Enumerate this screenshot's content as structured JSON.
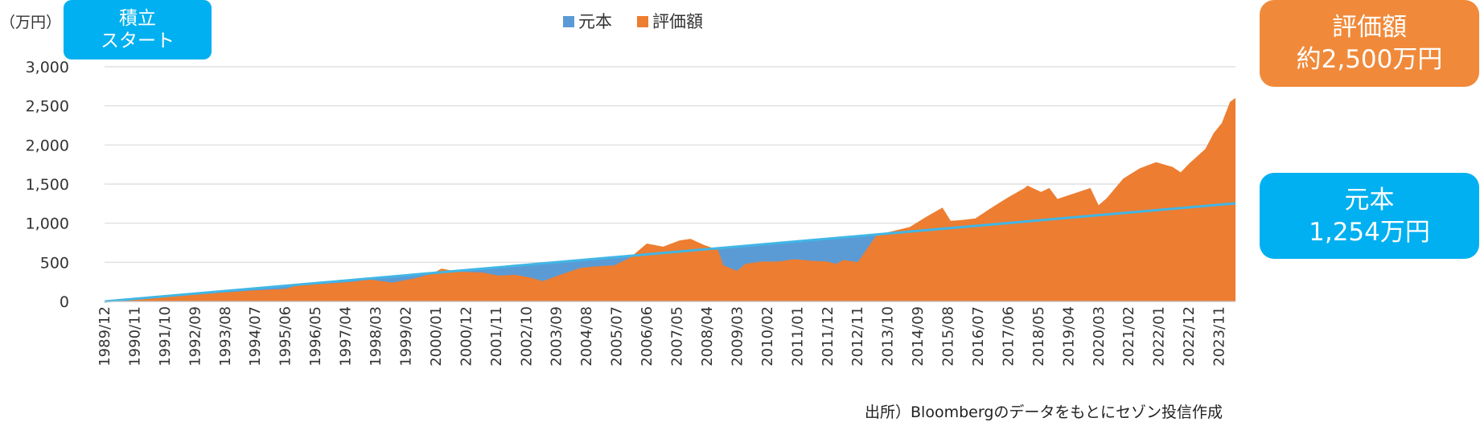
{
  "badges": {
    "start": [
      "積立",
      "スタート"
    ],
    "value": [
      "評価額",
      "約2,500万円"
    ],
    "principal": [
      "元本",
      "1,254万円"
    ]
  },
  "source_note": "出所）Bloombergのデータをもとにセゾン投信作成",
  "colors": {
    "principal": "#5B9BD5",
    "value": "#ED7D31",
    "principal_line": "#41B6E6",
    "badge_blue": "#00B0F0",
    "badge_orange": "#F08A3A",
    "grid": "#D9D9D9"
  },
  "chart_data": {
    "type": "area",
    "unit_label": "（万円）",
    "ylim": [
      0,
      3000
    ],
    "yticks": [
      "0",
      "500",
      "1,000",
      "1,500",
      "2,000",
      "2,500",
      "3,000"
    ],
    "ytick_values": [
      0,
      500,
      1000,
      1500,
      2000,
      2500,
      3000
    ],
    "x_start": "1989/12",
    "x_end": "2024/05",
    "xticks": [
      "1989/12",
      "1990/11",
      "1991/10",
      "1992/09",
      "1993/08",
      "1994/07",
      "1995/06",
      "1996/05",
      "1997/04",
      "1998/03",
      "1999/02",
      "2000/01",
      "2000/12",
      "2001/11",
      "2002/10",
      "2003/09",
      "2004/08",
      "2005/07",
      "2006/06",
      "2007/05",
      "2008/04",
      "2009/03",
      "2010/02",
      "2011/01",
      "2011/12",
      "2012/11",
      "2013/10",
      "2014/09",
      "2015/08",
      "2016/07",
      "2017/06",
      "2018/05",
      "2019/04",
      "2020/03",
      "2021/02",
      "2022/01",
      "2022/12",
      "2023/11"
    ],
    "legend": [
      "元本",
      "評価額"
    ],
    "legend_position": "top",
    "grid": true,
    "series": [
      {
        "name": "元本",
        "type": "area",
        "x": [
          "1989/12",
          "2024/05"
        ],
        "values": [
          0,
          1254
        ]
      },
      {
        "name": "評価額",
        "type": "area",
        "x": [
          "1989/12",
          "1990/06",
          "1991/06",
          "1992/06",
          "1993/06",
          "1994/06",
          "1995/06",
          "1996/01",
          "1996/06",
          "1997/06",
          "1998/01",
          "1998/09",
          "1999/06",
          "1999/12",
          "2000/03",
          "2000/09",
          "2001/06",
          "2001/12",
          "2002/06",
          "2002/12",
          "2003/04",
          "2003/12",
          "2004/06",
          "2004/12",
          "2005/06",
          "2005/12",
          "2006/03",
          "2006/06",
          "2006/12",
          "2007/06",
          "2007/10",
          "2008/03",
          "2008/08",
          "2008/10",
          "2009/03",
          "2009/06",
          "2009/12",
          "2010/06",
          "2010/12",
          "2011/06",
          "2011/12",
          "2012/03",
          "2012/06",
          "2012/11",
          "2013/03",
          "2013/06",
          "2013/12",
          "2014/06",
          "2014/12",
          "2015/06",
          "2015/09",
          "2016/01",
          "2016/06",
          "2016/12",
          "2017/06",
          "2017/12",
          "2018/01",
          "2018/06",
          "2018/09",
          "2018/12",
          "2019/06",
          "2019/12",
          "2020/03",
          "2020/06",
          "2020/12",
          "2021/06",
          "2021/12",
          "2022/06",
          "2022/09",
          "2022/12",
          "2023/06",
          "2023/09",
          "2023/12",
          "2024/03",
          "2024/05"
        ],
        "values": [
          0,
          20,
          45,
          80,
          110,
          140,
          160,
          230,
          220,
          250,
          280,
          240,
          300,
          360,
          420,
          380,
          370,
          330,
          340,
          300,
          260,
          360,
          430,
          450,
          460,
          560,
          650,
          740,
          700,
          780,
          800,
          720,
          660,
          460,
          390,
          480,
          510,
          510,
          540,
          520,
          510,
          480,
          530,
          500,
          700,
          850,
          900,
          950,
          1080,
          1200,
          1030,
          1040,
          1060,
          1200,
          1330,
          1450,
          1480,
          1400,
          1450,
          1310,
          1380,
          1450,
          1230,
          1320,
          1570,
          1700,
          1780,
          1720,
          1650,
          1760,
          1950,
          2150,
          2280,
          2550,
          2600
        ]
      }
    ]
  }
}
